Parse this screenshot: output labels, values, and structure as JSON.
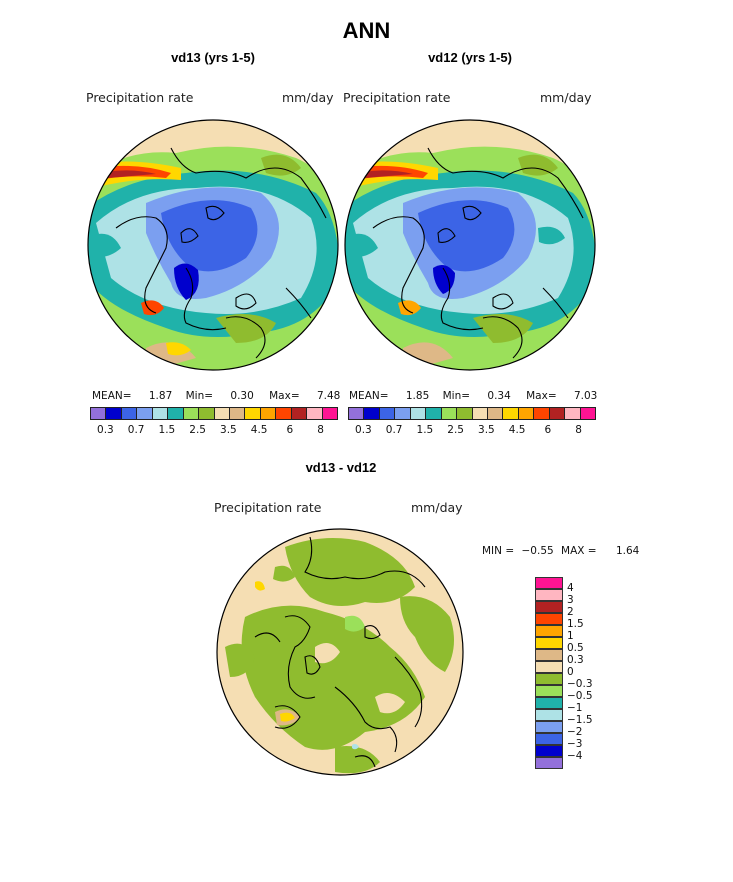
{
  "figure": {
    "title": "ANN",
    "panels": [
      {
        "subtitle": "vd13 (yrs 1-5)",
        "field_label": "Precipitation rate",
        "units": "mm/day",
        "stats": {
          "mean_label": "MEAN=",
          "mean": "1.87",
          "min_label": "Min=",
          "min": "0.30",
          "max_label": "Max=",
          "max": "7.48"
        }
      },
      {
        "subtitle": "vd12 (yrs 1-5)",
        "field_label": "Precipitation rate",
        "units": "mm/day",
        "stats": {
          "mean_label": "MEAN=",
          "mean": "1.85",
          "min_label": "Min=",
          "min": "0.34",
          "max_label": "Max=",
          "max": "7.03"
        }
      }
    ],
    "diff_panel": {
      "subtitle": "vd13 - vd12",
      "field_label": "Precipitation rate",
      "units": "mm/day",
      "min_label": "MIN =",
      "min": "−0.55",
      "max_label": "MAX =",
      "max": "1.64"
    }
  },
  "colorbar_abs": {
    "colors": [
      "#9370db",
      "#0000cd",
      "#3c64e6",
      "#7b9ff0",
      "#aee2e6",
      "#20b2aa",
      "#9be05a",
      "#8fbc2f",
      "#f5deb3",
      "#deb887",
      "#ffd700",
      "#ffa500",
      "#ff4500",
      "#b22222",
      "#ffb6c1",
      "#ff1493"
    ],
    "tick_labels": [
      "0.3",
      "0.7",
      "1.5",
      "2.5",
      "3.5",
      "4.5",
      "6",
      "8"
    ]
  },
  "colorbar_diff": {
    "colors": [
      "#ff1493",
      "#ffb6c1",
      "#b22222",
      "#ff4500",
      "#ffa500",
      "#ffd700",
      "#deb887",
      "#f5deb3",
      "#8fbc2f",
      "#9be05a",
      "#20b2aa",
      "#aee2e6",
      "#7b9ff0",
      "#3c64e6",
      "#0000cd",
      "#9370db"
    ],
    "labels": [
      "4",
      "3",
      "2",
      "1.5",
      "1",
      "0.5",
      "0.3",
      "0",
      "−0.3",
      "−0.5",
      "−1",
      "−1.5",
      "−2",
      "−3",
      "−4"
    ]
  }
}
